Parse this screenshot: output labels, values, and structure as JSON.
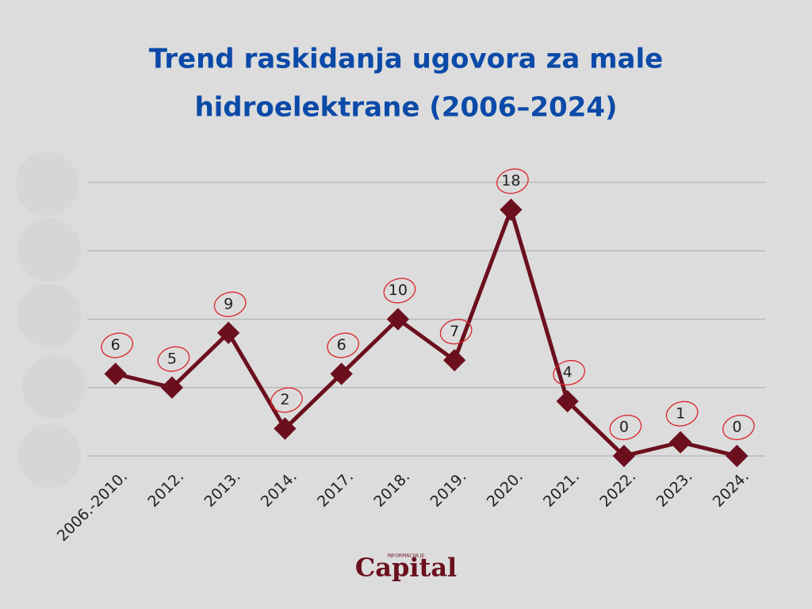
{
  "chart_data": {
    "type": "line",
    "title_lines": [
      "Trend raskidanja ugovora za male",
      "hidroelektrane (2006–2024)"
    ],
    "categories": [
      "2006.-2010.",
      "2012.",
      "2013.",
      "2014.",
      "2017.",
      "2018.",
      "2019.",
      "2020.",
      "2021.",
      "2022.",
      "2023.",
      "2024."
    ],
    "values": [
      6,
      5,
      9,
      2,
      6,
      10,
      7,
      18,
      4,
      0,
      1,
      0
    ],
    "color": "#6b0f1e",
    "label_circle_color": "#d9262b",
    "ylim": [
      0,
      20
    ],
    "yticks": [
      0,
      5,
      10,
      15,
      20
    ],
    "grid": true
  },
  "logo": {
    "tagline": "INFORMACIJA JE",
    "name": "Capital"
  }
}
